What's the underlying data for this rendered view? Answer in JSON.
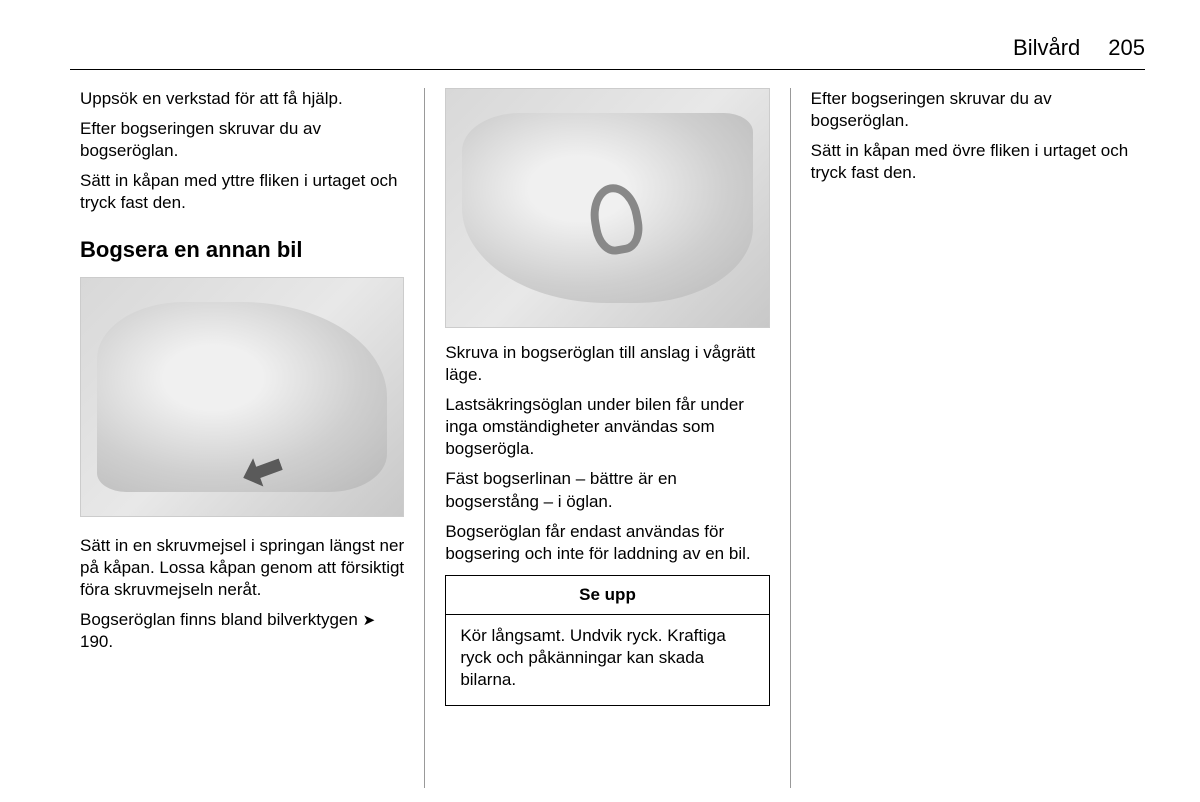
{
  "header": {
    "section_title": "Bilvård",
    "page_number": "205"
  },
  "column1": {
    "p1": "Uppsök en verkstad för att få hjälp.",
    "p2": "Efter bogseringen skruvar du av bogseröglan.",
    "p3": "Sätt in kåpan med yttre fliken i urtaget och tryck fast den.",
    "heading": "Bogsera en annan bil",
    "image_alt": "car rear bumper with arrow",
    "p4": "Sätt in en skruvmejsel i springan längst ner på kåpan. Lossa kåpan genom att försiktigt föra skruvmejseln neråt.",
    "p5_pre": "Bogseröglan finns bland bilverktygen ",
    "p5_ref": "190.",
    "ref_symbol": "➤"
  },
  "column2": {
    "image_alt": "tow eye screwed into bumper",
    "p1": "Skruva in bogseröglan till anslag i vågrätt läge.",
    "p2": "Lastsäkringsöglan under bilen får under inga omständigheter användas som bogserögla.",
    "p3": "Fäst bogserlinan – bättre är en bogserstång – i öglan.",
    "p4": "Bogseröglan får endast användas för bogsering och inte för laddning av en bil.",
    "caution_title": "Se upp",
    "caution_body": "Kör långsamt. Undvik ryck. Kraftiga ryck och påkänningar kan skada bilarna."
  },
  "column3": {
    "p1": "Efter bogseringen skruvar du av bogseröglan.",
    "p2": "Sätt in kåpan med övre fliken i urtaget och tryck fast den."
  }
}
